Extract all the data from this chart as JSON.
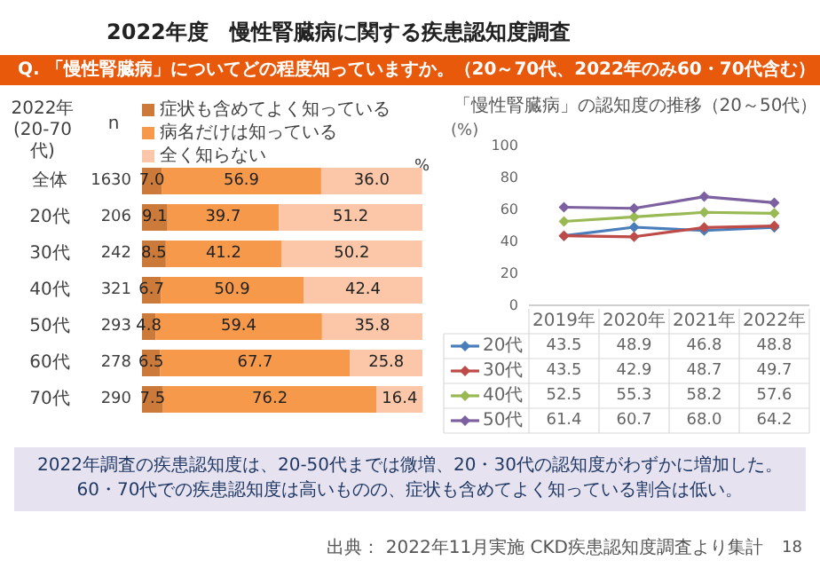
{
  "chart_data": [
    {
      "type": "bar",
      "orientation": "horizontal",
      "stacked": true,
      "legend": "top",
      "tick_labels": "y",
      "title": "2022年度　慢性腎臓病に関する疾患認知度調査",
      "subtitle": "Q. 「慢性腎臓病」についてどの程度知っていますか。（20～70代、2022年のみ60・70代含む）",
      "ylabel": "2022年(20-70代)",
      "xlabel": "%",
      "xlim": [
        0,
        100
      ],
      "categories": [
        "全体",
        "20代",
        "30代",
        "40代",
        "50代",
        "60代",
        "70代"
      ],
      "series": [
        {
          "name": "症状も含めてよく知っている",
          "color": "#cc7a3a",
          "values": [
            7.0,
            9.1,
            8.5,
            6.7,
            4.8,
            6.5,
            7.5
          ],
          "value_labels": [
            "7.0",
            "9.1",
            "8.5",
            "6.7",
            "4.8",
            "6.5",
            "7.5"
          ]
        },
        {
          "name": "病名だけは知っている",
          "color": "#f7994a",
          "values": [
            56.9,
            39.7,
            41.2,
            50.9,
            59.4,
            67.7,
            76.2
          ],
          "value_labels": [
            "56.9",
            "39.7",
            "41.2",
            "50.9",
            "59.4",
            "67.7",
            "76.2"
          ]
        },
        {
          "name": "全く知らない",
          "color": "#fbc7a8",
          "values": [
            36.0,
            51.2,
            50.2,
            42.4,
            35.8,
            25.8,
            16.4
          ],
          "value_labels": [
            "36.0",
            "51.2",
            "50.2",
            "42.4",
            "35.8",
            "25.8",
            "16.4"
          ]
        }
      ],
      "annotations": [
        "n",
        "1630",
        "206",
        "242",
        "321",
        "293",
        "278",
        "290",
        "2022年調査の疾患認知度は、20-50代までは微増、20・30代の認知度がわずかに増加した。",
        "60・70代での疾患認知度は高いものの、症状も含めてよく知っている割合は低い。",
        "出典： 2022年11月実施 CKD疾患認知度調査より集計",
        "18"
      ]
    },
    {
      "type": "line",
      "marker": "diamond",
      "legend": "bottom",
      "title": "「慢性腎臓病」の認知度の推移（20～50代）",
      "ylabel": "(%)",
      "categories": [
        "2019年",
        "2020年",
        "2021年",
        "2022年"
      ],
      "ylim": [
        0,
        100
      ],
      "yticks": [
        0,
        20,
        40,
        60,
        80,
        100
      ],
      "series": [
        {
          "name": "20代",
          "color": "#4a7ebb",
          "values": [
            43.5,
            48.9,
            46.8,
            48.8
          ],
          "value_labels": [
            "43.5",
            "48.9",
            "46.8",
            "48.8"
          ]
        },
        {
          "name": "30代",
          "color": "#be4b48",
          "values": [
            43.5,
            42.9,
            48.7,
            49.7
          ],
          "value_labels": [
            "43.5",
            "42.9",
            "48.7",
            "49.7"
          ]
        },
        {
          "name": "40代",
          "color": "#98b954",
          "values": [
            52.5,
            55.3,
            58.2,
            57.6
          ],
          "value_labels": [
            "52.5",
            "55.3",
            "58.2",
            "57.6"
          ]
        },
        {
          "name": "50代",
          "color": "#7d60a0",
          "values": [
            61.4,
            60.7,
            68.0,
            64.2
          ],
          "value_labels": [
            "61.4",
            "60.7",
            "68.0",
            "64.2"
          ]
        }
      ]
    }
  ]
}
